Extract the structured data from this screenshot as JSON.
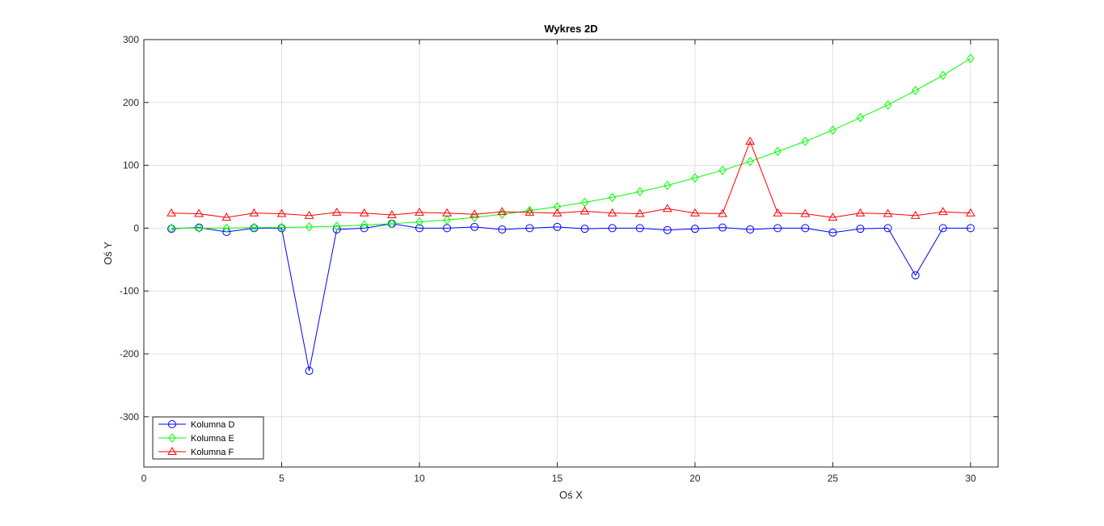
{
  "chart_data": {
    "type": "line",
    "title": "Wykres 2D",
    "xlabel": "Oś X",
    "ylabel": "Oś Y",
    "xlim": [
      0,
      31
    ],
    "ylim": [
      -380,
      300
    ],
    "xticks": [
      0,
      5,
      10,
      15,
      20,
      25,
      30
    ],
    "yticks": [
      -300,
      -200,
      -100,
      0,
      100,
      200,
      300
    ],
    "grid": true,
    "legend_position": "bottom-left",
    "x": [
      1,
      2,
      3,
      4,
      5,
      6,
      7,
      8,
      9,
      10,
      11,
      12,
      13,
      14,
      15,
      16,
      17,
      18,
      19,
      20,
      21,
      22,
      23,
      24,
      25,
      26,
      27,
      28,
      29,
      30
    ],
    "series": [
      {
        "name": "Kolumna D",
        "color": "#0000ff",
        "marker": "circle",
        "values": [
          -1,
          1,
          -6,
          0,
          0,
          -227,
          -2,
          0,
          7,
          0,
          0,
          2,
          -2,
          0,
          2,
          -1,
          0,
          0,
          -3,
          -1,
          1,
          -2,
          0,
          0,
          -7,
          -1,
          0,
          -75,
          0,
          0
        ]
      },
      {
        "name": "Kolumna E",
        "color": "#00ff00",
        "marker": "diamond",
        "values": [
          0,
          0,
          0,
          1,
          1,
          2,
          3,
          5,
          7,
          10,
          13,
          17,
          22,
          28,
          34,
          41,
          49,
          58,
          68,
          80,
          92,
          106,
          122,
          138,
          156,
          176,
          196,
          219,
          243,
          270
        ]
      },
      {
        "name": "Kolumna F",
        "color": "#ff0000",
        "marker": "triangle",
        "values": [
          24,
          23,
          17,
          24,
          23,
          20,
          25,
          24,
          21,
          25,
          24,
          22,
          26,
          25,
          24,
          27,
          24,
          23,
          31,
          24,
          23,
          138,
          24,
          23,
          17,
          24,
          23,
          20,
          26,
          24
        ]
      }
    ]
  }
}
